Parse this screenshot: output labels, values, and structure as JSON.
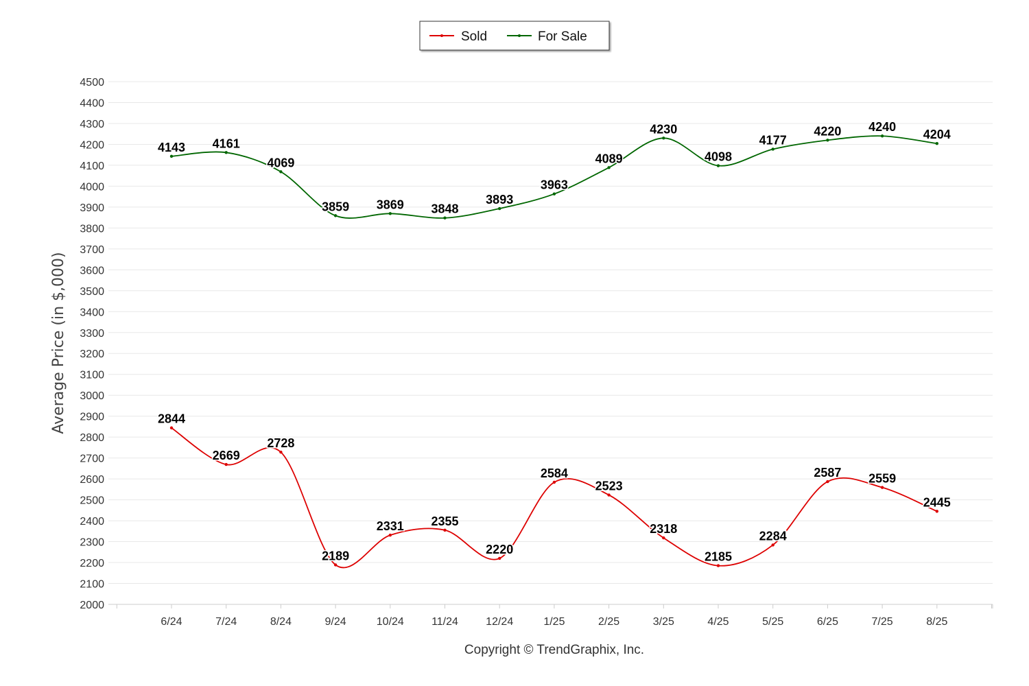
{
  "chart_data": {
    "type": "line",
    "categories": [
      "6/24",
      "7/24",
      "8/24",
      "9/24",
      "10/24",
      "11/24",
      "12/24",
      "1/25",
      "2/25",
      "3/25",
      "4/25",
      "5/25",
      "6/25",
      "7/25",
      "8/25"
    ],
    "series": [
      {
        "name": "Sold",
        "color": "#dd0000",
        "values": [
          2844,
          2669,
          2728,
          2189,
          2331,
          2355,
          2220,
          2584,
          2523,
          2318,
          2185,
          2284,
          2587,
          2559,
          2445
        ]
      },
      {
        "name": "For Sale",
        "color": "#006600",
        "values": [
          4143,
          4161,
          4069,
          3859,
          3869,
          3848,
          3893,
          3963,
          4089,
          4230,
          4098,
          4177,
          4220,
          4240,
          4204
        ]
      }
    ],
    "ylabel": "Average Price (in $,000)",
    "ylim": [
      2000,
      4500
    ],
    "ytick_step": 100,
    "grid": true,
    "legend_position": "top-center"
  },
  "credit": "Copyright © TrendGraphix, Inc."
}
